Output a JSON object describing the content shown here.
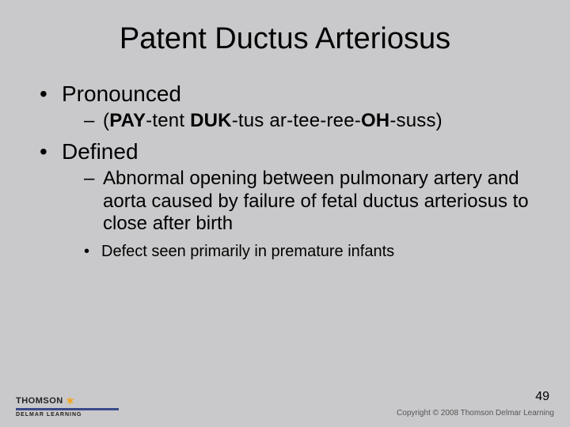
{
  "slide": {
    "title": "Patent Ductus Arteriosus",
    "bullets": {
      "pronounced_label": "Pronounced",
      "pronunciation_prefix": "(",
      "pron_b1": "PAY",
      "pron_t1": "-tent   ",
      "pron_b2": "DUK",
      "pron_t2": "-tus   ar-tee-ree-",
      "pron_b3": "OH",
      "pron_t3": "-suss)",
      "defined_label": "Defined",
      "definition": "Abnormal opening between pulmonary artery and aorta caused by failure of fetal ductus arteriosus to close after birth",
      "sub_note": "Defect seen primarily in premature infants"
    }
  },
  "footer": {
    "brand_top": "THOMSON",
    "brand_sub": "DELMAR LEARNING",
    "page_number": "49",
    "copyright": "Copyright © 2008 Thomson Delmar Learning"
  },
  "colors": {
    "background": "#c9c9cb",
    "text": "#000000",
    "brand_bar": "#3a4a8a",
    "star": "#f5a623",
    "copyright": "#555555"
  },
  "typography": {
    "title_fontsize": 38,
    "level1_fontsize": 28,
    "level2_fontsize": 24,
    "level3_fontsize": 20,
    "pagenum_fontsize": 16,
    "copyright_fontsize": 10,
    "font_family": "Arial"
  }
}
